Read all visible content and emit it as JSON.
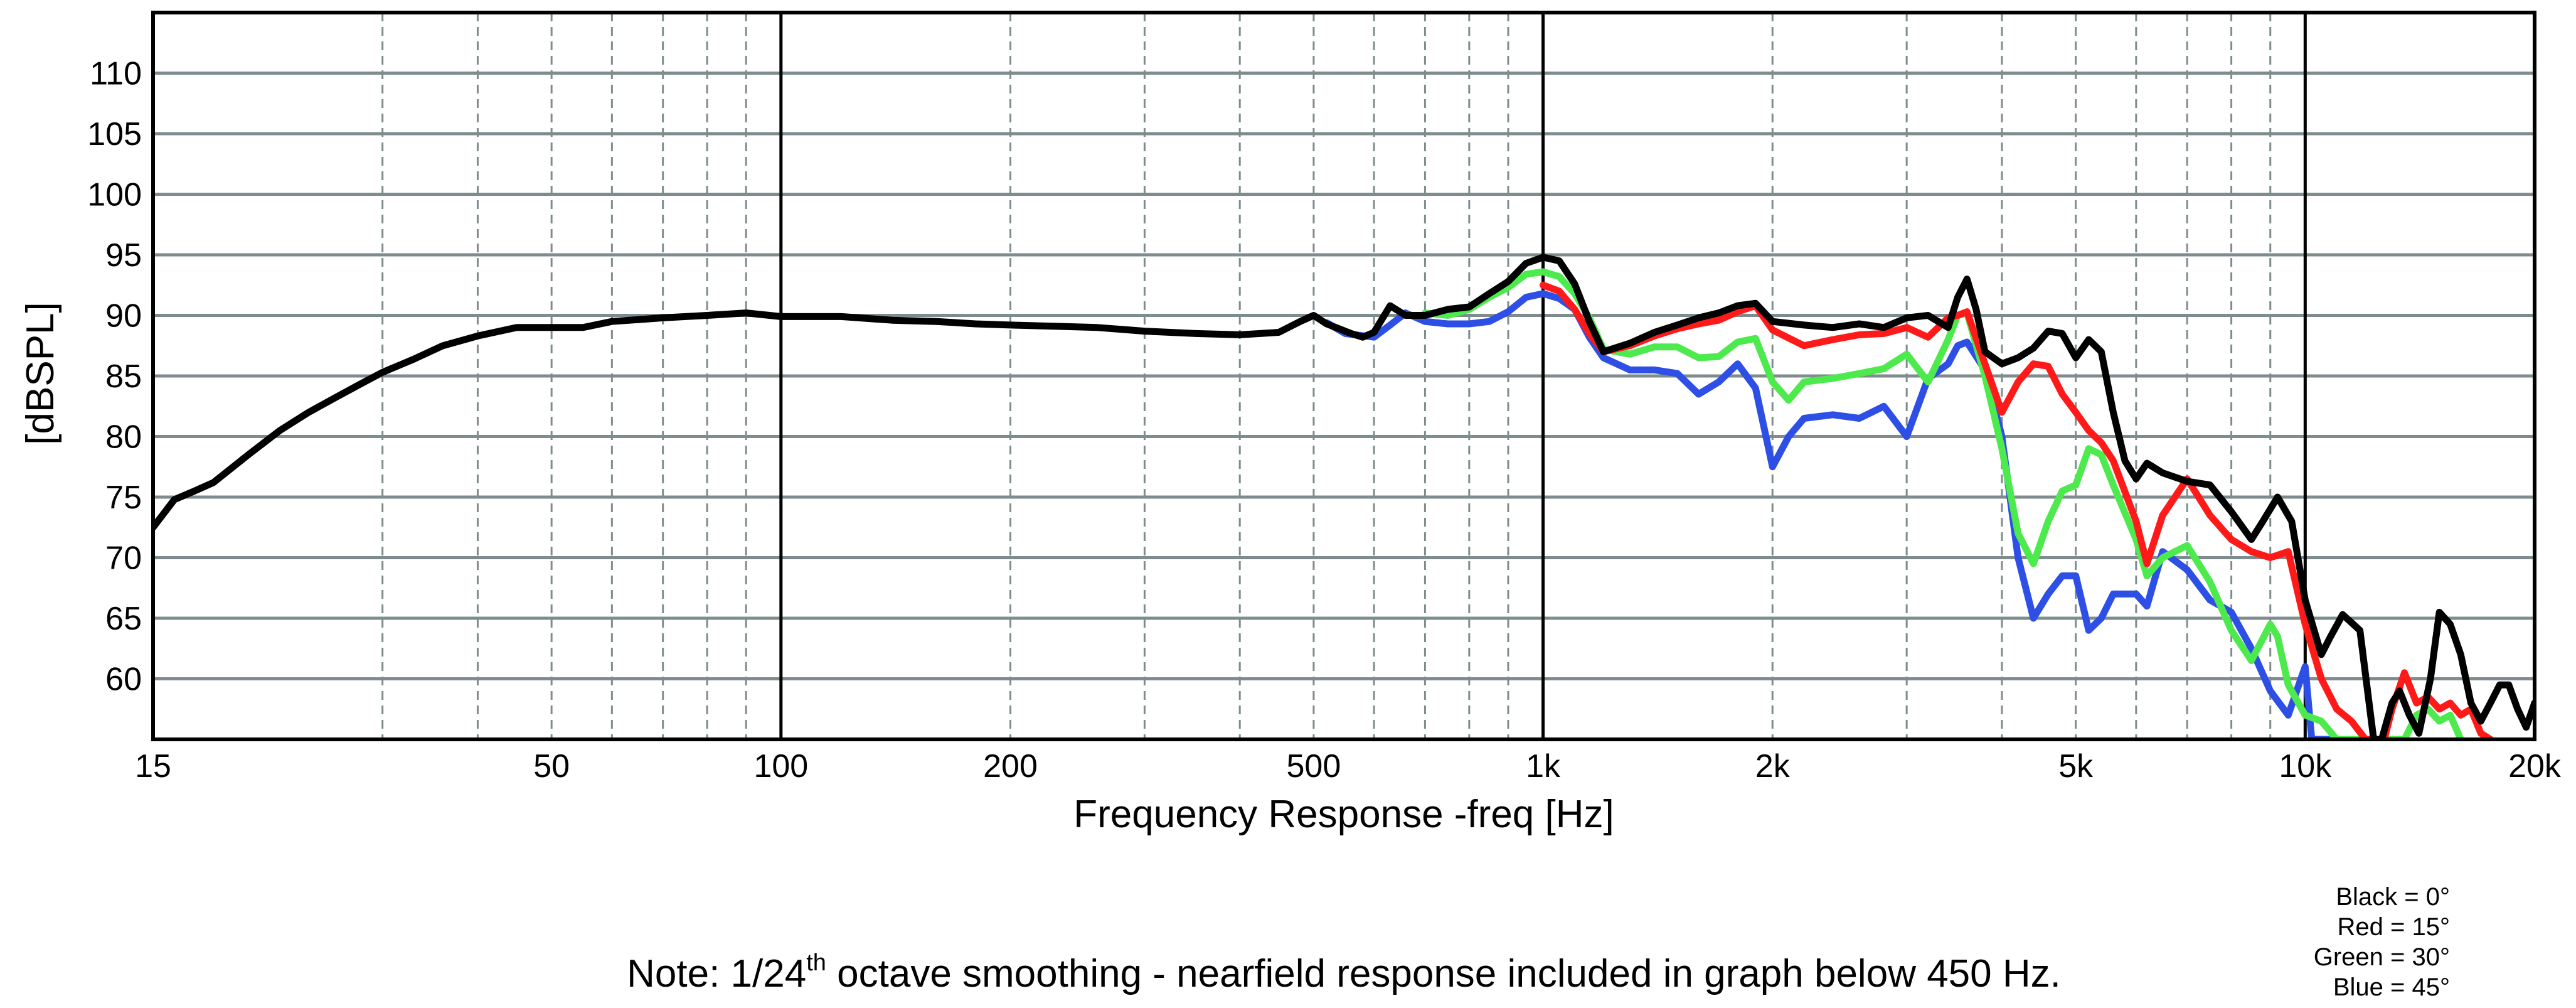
{
  "chart_data": {
    "type": "line",
    "title": "",
    "xlabel": "Frequency Response -freq [Hz]",
    "ylabel": "[dBSPL]",
    "x_scale": "log",
    "xlim": [
      15,
      20000
    ],
    "ylim": [
      55,
      115
    ],
    "x_ticks": [
      {
        "value": 15,
        "label": "15"
      },
      {
        "value": 50,
        "label": "50"
      },
      {
        "value": 100,
        "label": "100"
      },
      {
        "value": 200,
        "label": "200"
      },
      {
        "value": 500,
        "label": "500"
      },
      {
        "value": 1000,
        "label": "1k"
      },
      {
        "value": 2000,
        "label": "2k"
      },
      {
        "value": 5000,
        "label": "5k"
      },
      {
        "value": 10000,
        "label": "10k"
      },
      {
        "value": 20000,
        "label": "20k"
      }
    ],
    "y_ticks": [
      60,
      65,
      70,
      75,
      80,
      85,
      90,
      95,
      100,
      105,
      110
    ],
    "grid": true,
    "legend_position": "bottom-right",
    "legend": [
      "Black = 0°",
      "Red = 15°",
      "Green = 30°",
      "Blue = 45°"
    ],
    "note": {
      "prefix": "Note: 1/24",
      "superscript": "th",
      "suffix": " octave smoothing - nearfield response included in graph below 450 Hz."
    },
    "series": [
      {
        "color": "#000000",
        "points": [
          [
            15,
            72.5
          ],
          [
            16,
            74.8
          ],
          [
            17,
            75.5
          ],
          [
            18,
            76.2
          ],
          [
            20,
            78.5
          ],
          [
            22,
            80.5
          ],
          [
            24,
            82
          ],
          [
            26,
            83.2
          ],
          [
            28,
            84.3
          ],
          [
            30,
            85.3
          ],
          [
            33,
            86.4
          ],
          [
            36,
            87.5
          ],
          [
            40,
            88.3
          ],
          [
            45,
            89
          ],
          [
            50,
            89
          ],
          [
            55,
            89
          ],
          [
            60,
            89.5
          ],
          [
            70,
            89.8
          ],
          [
            80,
            90
          ],
          [
            90,
            90.2
          ],
          [
            100,
            89.9
          ],
          [
            120,
            89.9
          ],
          [
            140,
            89.6
          ],
          [
            160,
            89.5
          ],
          [
            180,
            89.3
          ],
          [
            200,
            89.2
          ],
          [
            230,
            89.1
          ],
          [
            260,
            89
          ],
          [
            300,
            88.7
          ],
          [
            350,
            88.5
          ],
          [
            400,
            88.4
          ],
          [
            450,
            88.6
          ],
          [
            480,
            89.5
          ],
          [
            500,
            90
          ],
          [
            520,
            89.3
          ],
          [
            560,
            88.5
          ],
          [
            580,
            88.2
          ],
          [
            600,
            88.6
          ],
          [
            630,
            90.8
          ],
          [
            660,
            90
          ],
          [
            700,
            90
          ],
          [
            750,
            90.5
          ],
          [
            800,
            90.7
          ],
          [
            850,
            91.8
          ],
          [
            900,
            92.8
          ],
          [
            950,
            94.3
          ],
          [
            1000,
            94.8
          ],
          [
            1050,
            94.5
          ],
          [
            1100,
            92.6
          ],
          [
            1150,
            89.5
          ],
          [
            1200,
            87
          ],
          [
            1300,
            87.7
          ],
          [
            1400,
            88.6
          ],
          [
            1500,
            89.2
          ],
          [
            1600,
            89.8
          ],
          [
            1700,
            90.2
          ],
          [
            1800,
            90.8
          ],
          [
            1900,
            91
          ],
          [
            2000,
            89.5
          ],
          [
            2200,
            89.2
          ],
          [
            2400,
            89
          ],
          [
            2600,
            89.3
          ],
          [
            2800,
            89
          ],
          [
            3000,
            89.8
          ],
          [
            3200,
            90
          ],
          [
            3400,
            89
          ],
          [
            3500,
            91.5
          ],
          [
            3600,
            93
          ],
          [
            3700,
            90.5
          ],
          [
            3800,
            87
          ],
          [
            4000,
            86
          ],
          [
            4200,
            86.5
          ],
          [
            4400,
            87.3
          ],
          [
            4600,
            88.7
          ],
          [
            4800,
            88.5
          ],
          [
            5000,
            86.5
          ],
          [
            5200,
            88
          ],
          [
            5400,
            87
          ],
          [
            5600,
            82
          ],
          [
            5800,
            78
          ],
          [
            6000,
            76.5
          ],
          [
            6200,
            77.8
          ],
          [
            6500,
            77
          ],
          [
            7000,
            76.3
          ],
          [
            7500,
            76
          ],
          [
            8000,
            73.8
          ],
          [
            8500,
            71.5
          ],
          [
            8800,
            73
          ],
          [
            9200,
            75
          ],
          [
            9600,
            73
          ],
          [
            10000,
            66.5
          ],
          [
            10500,
            62
          ],
          [
            10800,
            63.5
          ],
          [
            11200,
            65.3
          ],
          [
            11800,
            64
          ],
          [
            12300,
            55
          ],
          [
            12600,
            55
          ],
          [
            13000,
            58
          ],
          [
            13300,
            59
          ],
          [
            13700,
            57
          ],
          [
            14100,
            55.5
          ],
          [
            14600,
            60
          ],
          [
            15000,
            65.5
          ],
          [
            15500,
            64.5
          ],
          [
            16000,
            62
          ],
          [
            16500,
            58
          ],
          [
            17000,
            56.5
          ],
          [
            17500,
            58
          ],
          [
            18000,
            59.5
          ],
          [
            18500,
            59.5
          ],
          [
            19000,
            57.5
          ],
          [
            19500,
            56
          ],
          [
            20000,
            58
          ]
        ]
      },
      {
        "color": "#ff1a1a",
        "points": [
          [
            1000,
            92.5
          ],
          [
            1050,
            92
          ],
          [
            1100,
            90.5
          ],
          [
            1150,
            88.5
          ],
          [
            1200,
            87
          ],
          [
            1300,
            87.5
          ],
          [
            1400,
            88.3
          ],
          [
            1500,
            88.9
          ],
          [
            1600,
            89.3
          ],
          [
            1700,
            89.6
          ],
          [
            1800,
            90.3
          ],
          [
            1900,
            90.8
          ],
          [
            2000,
            88.8
          ],
          [
            2200,
            87.5
          ],
          [
            2400,
            88
          ],
          [
            2600,
            88.4
          ],
          [
            2800,
            88.5
          ],
          [
            3000,
            89
          ],
          [
            3200,
            88.2
          ],
          [
            3400,
            89.8
          ],
          [
            3500,
            90
          ],
          [
            3600,
            90.3
          ],
          [
            3800,
            86
          ],
          [
            4000,
            82
          ],
          [
            4200,
            84.5
          ],
          [
            4400,
            86
          ],
          [
            4600,
            85.8
          ],
          [
            4800,
            83.5
          ],
          [
            5000,
            82
          ],
          [
            5200,
            80.5
          ],
          [
            5400,
            79.5
          ],
          [
            5600,
            78
          ],
          [
            6000,
            73
          ],
          [
            6200,
            69.5
          ],
          [
            6500,
            73.5
          ],
          [
            7000,
            76.5
          ],
          [
            7500,
            73.5
          ],
          [
            8000,
            71.5
          ],
          [
            8500,
            70.5
          ],
          [
            9000,
            70
          ],
          [
            9500,
            70.5
          ],
          [
            10000,
            64.5
          ],
          [
            10500,
            60
          ],
          [
            11000,
            57.5
          ],
          [
            11500,
            56.5
          ],
          [
            12000,
            55
          ],
          [
            12700,
            55
          ],
          [
            13000,
            57.5
          ],
          [
            13500,
            60.5
          ],
          [
            14000,
            58
          ],
          [
            14500,
            58.5
          ],
          [
            15000,
            57.5
          ],
          [
            15500,
            58
          ],
          [
            16000,
            57
          ],
          [
            16500,
            57.5
          ],
          [
            17000,
            55.5
          ],
          [
            17500,
            55
          ]
        ]
      },
      {
        "color": "#4dea4d",
        "points": [
          [
            700,
            90.2
          ],
          [
            750,
            90
          ],
          [
            800,
            90.5
          ],
          [
            850,
            91.5
          ],
          [
            900,
            92.3
          ],
          [
            950,
            93.4
          ],
          [
            1000,
            93.6
          ],
          [
            1050,
            93.2
          ],
          [
            1100,
            91.8
          ],
          [
            1150,
            89.8
          ],
          [
            1200,
            87.2
          ],
          [
            1300,
            86.8
          ],
          [
            1400,
            87.4
          ],
          [
            1500,
            87.4
          ],
          [
            1600,
            86.5
          ],
          [
            1700,
            86.6
          ],
          [
            1800,
            87.8
          ],
          [
            1900,
            88.1
          ],
          [
            2000,
            84.5
          ],
          [
            2100,
            83
          ],
          [
            2200,
            84.5
          ],
          [
            2400,
            84.8
          ],
          [
            2600,
            85.2
          ],
          [
            2800,
            85.6
          ],
          [
            3000,
            86.8
          ],
          [
            3200,
            84.5
          ],
          [
            3400,
            88
          ],
          [
            3500,
            90
          ],
          [
            3600,
            90.2
          ],
          [
            3800,
            85
          ],
          [
            4000,
            79
          ],
          [
            4200,
            72
          ],
          [
            4400,
            69.5
          ],
          [
            4600,
            73
          ],
          [
            4800,
            75.5
          ],
          [
            5000,
            76
          ],
          [
            5200,
            79
          ],
          [
            5400,
            78.5
          ],
          [
            5600,
            76
          ],
          [
            6000,
            71.5
          ],
          [
            6200,
            68.5
          ],
          [
            6500,
            70
          ],
          [
            7000,
            71
          ],
          [
            7500,
            68
          ],
          [
            8000,
            64
          ],
          [
            8500,
            61.5
          ],
          [
            9000,
            64.5
          ],
          [
            9200,
            63.5
          ],
          [
            9500,
            59.5
          ],
          [
            10000,
            57
          ],
          [
            10500,
            56.5
          ],
          [
            11000,
            55
          ],
          [
            13500,
            55
          ],
          [
            14000,
            57
          ],
          [
            14500,
            57.5
          ],
          [
            15000,
            56.5
          ],
          [
            15500,
            57
          ],
          [
            16000,
            55
          ]
        ]
      },
      {
        "color": "#2d4fe6",
        "points": [
          [
            520,
            89.4
          ],
          [
            550,
            88.5
          ],
          [
            600,
            88.2
          ],
          [
            630,
            89.2
          ],
          [
            660,
            90.2
          ],
          [
            700,
            89.5
          ],
          [
            750,
            89.3
          ],
          [
            800,
            89.3
          ],
          [
            850,
            89.5
          ],
          [
            900,
            90.3
          ],
          [
            950,
            91.5
          ],
          [
            1000,
            91.8
          ],
          [
            1050,
            91.4
          ],
          [
            1100,
            90.5
          ],
          [
            1150,
            88.2
          ],
          [
            1200,
            86.5
          ],
          [
            1300,
            85.5
          ],
          [
            1400,
            85.5
          ],
          [
            1500,
            85.2
          ],
          [
            1600,
            83.5
          ],
          [
            1700,
            84.5
          ],
          [
            1800,
            86
          ],
          [
            1900,
            84
          ],
          [
            2000,
            77.5
          ],
          [
            2100,
            80
          ],
          [
            2200,
            81.5
          ],
          [
            2400,
            81.8
          ],
          [
            2600,
            81.5
          ],
          [
            2800,
            82.5
          ],
          [
            3000,
            80
          ],
          [
            3200,
            84.8
          ],
          [
            3400,
            86
          ],
          [
            3500,
            87.5
          ],
          [
            3600,
            87.8
          ],
          [
            3800,
            85.5
          ],
          [
            4000,
            80
          ],
          [
            4200,
            70
          ],
          [
            4400,
            65
          ],
          [
            4600,
            67
          ],
          [
            4800,
            68.5
          ],
          [
            5000,
            68.5
          ],
          [
            5200,
            64
          ],
          [
            5400,
            65
          ],
          [
            5600,
            67
          ],
          [
            6000,
            67
          ],
          [
            6200,
            66
          ],
          [
            6500,
            70.5
          ],
          [
            7000,
            69
          ],
          [
            7500,
            66.5
          ],
          [
            8000,
            65.5
          ],
          [
            8500,
            62.5
          ],
          [
            9000,
            59
          ],
          [
            9500,
            57
          ],
          [
            10000,
            61
          ],
          [
            10200,
            55
          ],
          [
            11000,
            55
          ]
        ]
      }
    ]
  }
}
